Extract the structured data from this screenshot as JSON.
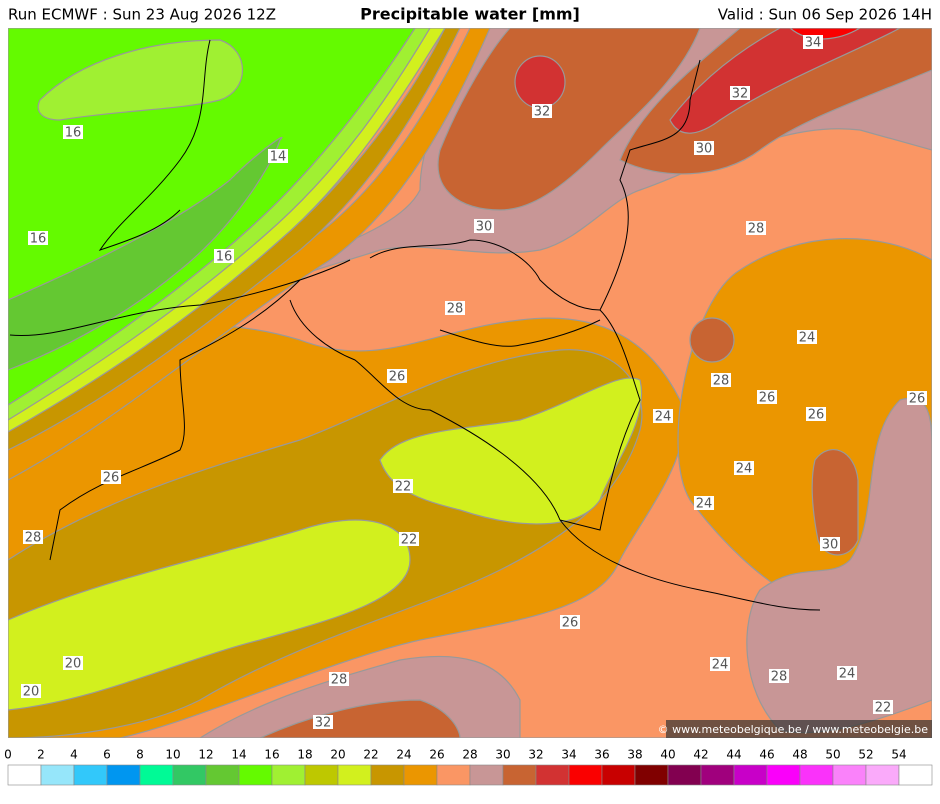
{
  "header": {
    "run": "Run ECMWF : Sun 23 Aug 2026 12Z",
    "title": "Precipitable water [mm]",
    "valid": "Valid : Sun 06 Sep 2026 14H"
  },
  "credit": "© www.meteobelgique.be / www.meteobelgie.be",
  "contour_labels": [
    16,
    14,
    16,
    16,
    32,
    34,
    32,
    30,
    30,
    28,
    28,
    24,
    26,
    28,
    26,
    26,
    26,
    24,
    24,
    24,
    22,
    26,
    22,
    28,
    30,
    26,
    20,
    24,
    28,
    24,
    20,
    28,
    22,
    32
  ],
  "colorbar": {
    "ticks": [
      0,
      2,
      4,
      6,
      8,
      10,
      12,
      14,
      16,
      18,
      20,
      22,
      24,
      26,
      28,
      30,
      32,
      34,
      36,
      38,
      40,
      42,
      44,
      46,
      48,
      50,
      52,
      54
    ],
    "colors": [
      "#ffffff",
      "#96e6fa",
      "#32c8fa",
      "#0096f0",
      "#00fa96",
      "#32c864",
      "#64c832",
      "#64fa00",
      "#a0f032",
      "#bec800",
      "#d2f01e",
      "#c89600",
      "#eb9600",
      "#fa9664",
      "#c89696",
      "#c86432",
      "#d23232",
      "#fa0000",
      "#c80000",
      "#800000",
      "#820050",
      "#a0007d",
      "#c800c8",
      "#fa00fa",
      "#fa32fa",
      "#fa82fa",
      "#faaafa",
      "#ffffff"
    ]
  }
}
